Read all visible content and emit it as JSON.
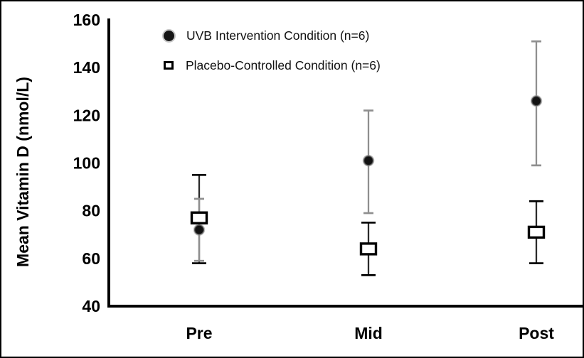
{
  "figure": {
    "background": "#ffffff",
    "border_color": "#000000",
    "axis_color": "#000000"
  },
  "chart_data": {
    "type": "scatter",
    "title": "",
    "xlabel": "",
    "ylabel": "Mean Vitamin D (nmol/L)",
    "categories": [
      "Pre",
      "Mid",
      "Post"
    ],
    "y_ticks": [
      160,
      140,
      120,
      100,
      80,
      60,
      40
    ],
    "ylim": [
      40,
      160
    ],
    "grid": false,
    "legend_position": "top-inside",
    "series": [
      {
        "name": "UVB Intervention Condition (n=6)",
        "marker": "filled-circle",
        "marker_color": "#121212",
        "marker_halo_color": "#8a8a8a",
        "error_color": "#8f8f8f",
        "values": [
          72,
          101,
          126
        ],
        "error_low": [
          59,
          79,
          99
        ],
        "error_high": [
          85,
          122,
          151
        ]
      },
      {
        "name": "Placebo-Controlled Condition (n=6)",
        "marker": "open-square",
        "marker_color": "#000000",
        "marker_fill": "#ffffff",
        "error_color": "#2a2a2a",
        "cap_color": "#000000",
        "values": [
          77,
          64,
          71
        ],
        "error_low": [
          58,
          53,
          58
        ],
        "error_high": [
          95,
          75,
          84
        ]
      }
    ]
  }
}
